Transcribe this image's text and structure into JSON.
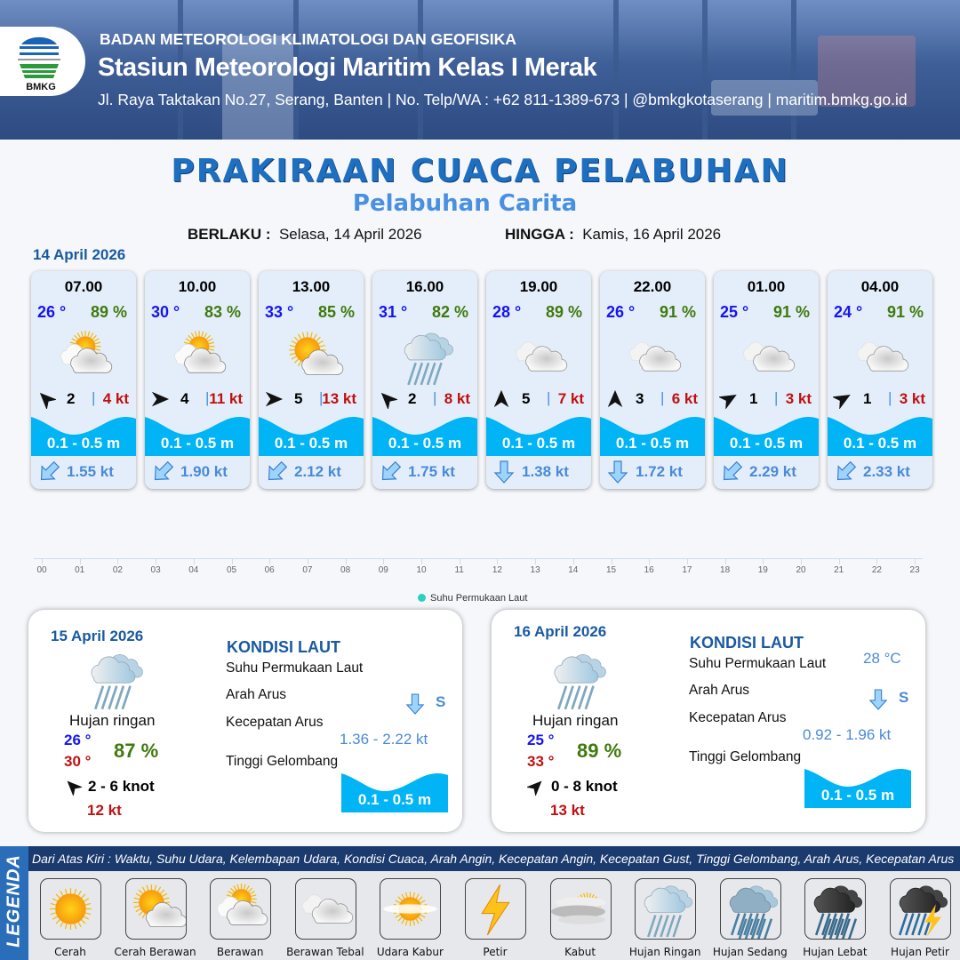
{
  "header": {
    "logo_text": "BMKG",
    "agency": "BADAN METEOROLOGI KLIMATOLOGI DAN GEOFISIKA",
    "station": "Stasiun Meteorologi Maritim Kelas I Merak",
    "contact": "Jl. Raya Taktakan No.27, Serang, Banten | No. Telp/WA : +62 811-1389-673 | @bmkgkotaserang | maritim.bmkg.go.id"
  },
  "title": "PRAKIRAAN CUACA PELABUHAN",
  "subtitle": "Pelabuhan Carita",
  "validity": {
    "from_label": "BERLAKU :",
    "from": "Selasa, 14 April 2026",
    "to_label": "HINGGA :",
    "to": "Kamis, 16 April 2026"
  },
  "day1": {
    "date": "14 April 2026",
    "forecasts": [
      {
        "time": "07.00",
        "temp": "26 °",
        "hum": "89 %",
        "weather": "berawan",
        "wind_dir_deg": 315,
        "wind": "2",
        "gust": "4 kt",
        "wave": "0.1 - 0.5 m",
        "current_dir_deg": 225,
        "current": "1.55 kt"
      },
      {
        "time": "10.00",
        "temp": "30 °",
        "hum": "83 %",
        "weather": "berawan",
        "wind_dir_deg": 90,
        "wind": "4",
        "gust": "11 kt",
        "wave": "0.1 - 0.5 m",
        "current_dir_deg": 225,
        "current": "1.90 kt"
      },
      {
        "time": "13.00",
        "temp": "33 °",
        "hum": "85 %",
        "weather": "cerah-berawan",
        "wind_dir_deg": 90,
        "wind": "5",
        "gust": "13 kt",
        "wave": "0.1 - 0.5 m",
        "current_dir_deg": 225,
        "current": "2.12 kt"
      },
      {
        "time": "16.00",
        "temp": "31 °",
        "hum": "82 %",
        "weather": "hujan-ringan",
        "wind_dir_deg": 315,
        "wind": "2",
        "gust": "8 kt",
        "wave": "0.1 - 0.5 m",
        "current_dir_deg": 225,
        "current": "1.75 kt"
      },
      {
        "time": "19.00",
        "temp": "28 °",
        "hum": "89 %",
        "weather": "berawan-tebal",
        "wind_dir_deg": 0,
        "wind": "5",
        "gust": "7 kt",
        "wave": "0.1 - 0.5 m",
        "current_dir_deg": 180,
        "current": "1.38 kt"
      },
      {
        "time": "22.00",
        "temp": "26 °",
        "hum": "91 %",
        "weather": "berawan-tebal",
        "wind_dir_deg": 0,
        "wind": "3",
        "gust": "6 kt",
        "wave": "0.1 - 0.5 m",
        "current_dir_deg": 180,
        "current": "1.72 kt"
      },
      {
        "time": "01.00",
        "temp": "25 °",
        "hum": "91 %",
        "weather": "berawan-tebal",
        "wind_dir_deg": 60,
        "wind": "1",
        "gust": "3 kt",
        "wave": "0.1 - 0.5 m",
        "current_dir_deg": 225,
        "current": "2.29 kt"
      },
      {
        "time": "04.00",
        "temp": "24 °",
        "hum": "91 %",
        "weather": "berawan-tebal",
        "wind_dir_deg": 60,
        "wind": "1",
        "gust": "3 kt",
        "wave": "0.1 - 0.5 m",
        "current_dir_deg": 225,
        "current": "2.33 kt"
      }
    ]
  },
  "sst_chart": {
    "x_ticks": [
      "00",
      "01",
      "02",
      "03",
      "04",
      "05",
      "06",
      "07",
      "08",
      "09",
      "10",
      "11",
      "12",
      "13",
      "14",
      "15",
      "16",
      "17",
      "18",
      "19",
      "20",
      "21",
      "22",
      "23"
    ],
    "legend": "Suhu Permukaan Laut",
    "legend_color": "#2ccfc0"
  },
  "days": [
    {
      "date": "15 April 2026",
      "weather": "hujan-ringan",
      "condition": "Hujan ringan",
      "tmin": "26 °",
      "tmax": "30 °",
      "hum": "87 %",
      "wind_dir_deg": 315,
      "wind": "2  - 6 knot",
      "gust": "12 kt",
      "sea_title": "KONDISI LAUT",
      "sst_label": "Suhu Permukaan Laut",
      "sst": "",
      "current_dir_label": "Arah Arus",
      "current_dir": "S",
      "current_dir_deg": 180,
      "current_speed_label": "Kecepatan Arus",
      "current_speed": "1.36 - 2.22 kt",
      "wave_label": "Tinggi Gelombang",
      "wave": "0.1 - 0.5 m"
    },
    {
      "date": "16 April 2026",
      "weather": "hujan-ringan",
      "condition": "Hujan ringan",
      "tmin": "25 °",
      "tmax": "33 °",
      "hum": "89 %",
      "wind_dir_deg": 45,
      "wind": "0  - 8 knot",
      "gust": "13 kt",
      "sea_title": "KONDISI LAUT",
      "sst_label": "Suhu Permukaan Laut",
      "sst": "28 °C",
      "current_dir_label": "Arah Arus",
      "current_dir": "S",
      "current_dir_deg": 180,
      "current_speed_label": "Kecepatan Arus",
      "current_speed": "0.92  - 1.96 kt",
      "wave_label": "Tinggi Gelombang",
      "wave": "0.1 - 0.5 m"
    }
  ],
  "legend": {
    "side_label": "LEGENDA",
    "description": "Dari Atas Kiri : Waktu, Suhu Udara, Kelembapan Udara, Kondisi Cuaca, Arah Angin, Kecepatan Angin, Kecepatan Gust, Tinggi Gelombang, Arah Arus, Kecepatan Arus",
    "items": [
      {
        "label": "Cerah",
        "icon": "cerah"
      },
      {
        "label": "Cerah Berawan",
        "icon": "cerah-berawan"
      },
      {
        "label": "Berawan",
        "icon": "berawan"
      },
      {
        "label": "Berawan Tebal",
        "icon": "berawan-tebal"
      },
      {
        "label": "Udara Kabur",
        "icon": "udara-kabur"
      },
      {
        "label": "Petir",
        "icon": "petir"
      },
      {
        "label": "Kabut",
        "icon": "kabut"
      },
      {
        "label": "Hujan Ringan",
        "icon": "hujan-ringan"
      },
      {
        "label": "Hujan Sedang",
        "icon": "hujan-sedang"
      },
      {
        "label": "Hujan Lebat",
        "icon": "hujan-lebat"
      },
      {
        "label": "Hujan Petir",
        "icon": "hujan-petir"
      }
    ]
  },
  "colors": {
    "wave": "#00b4f5",
    "title": "#1e6fbf",
    "gust": "#c01010",
    "humidity": "#3f7a0d",
    "temp": "#1515f0",
    "current": "#4a8ad8"
  }
}
